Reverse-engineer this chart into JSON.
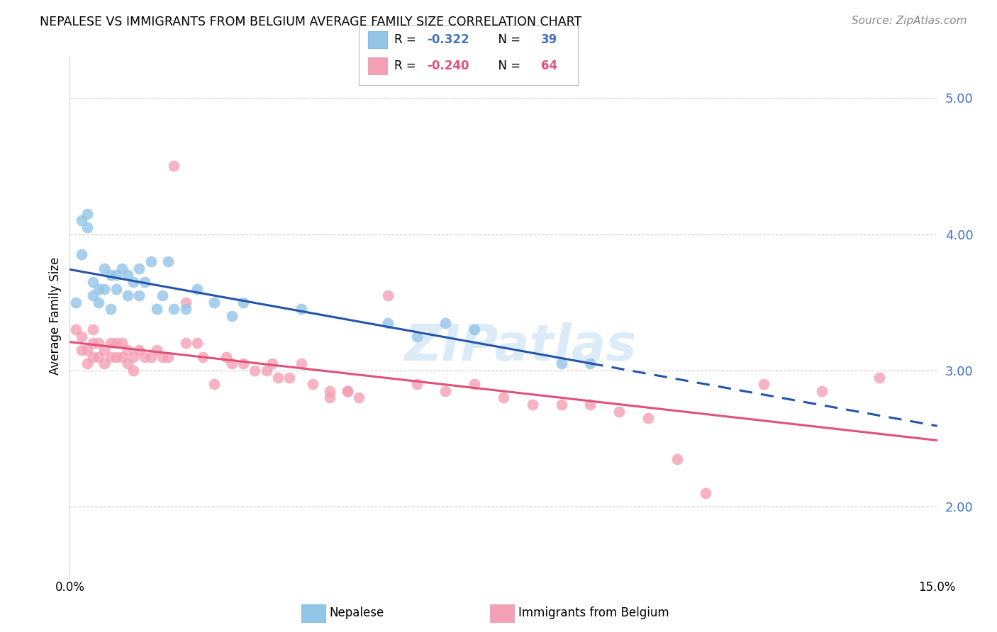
{
  "title": "NEPALESE VS IMMIGRANTS FROM BELGIUM AVERAGE FAMILY SIZE CORRELATION CHART",
  "source": "Source: ZipAtlas.com",
  "ylabel": "Average Family Size",
  "right_ylabel_color": "#4472C4",
  "xlim": [
    0.0,
    0.15
  ],
  "ylim": [
    1.5,
    5.3
  ],
  "yticks_right": [
    2.0,
    3.0,
    4.0,
    5.0
  ],
  "nepalese_color": "#92C5E8",
  "belgium_color": "#F4A0B5",
  "trend_blue_color": "#2255AA",
  "trend_pink_color": "#E0507A",
  "watermark": "ZIPatlas",
  "nepalese_x": [
    0.001,
    0.002,
    0.002,
    0.003,
    0.003,
    0.004,
    0.004,
    0.005,
    0.005,
    0.006,
    0.006,
    0.007,
    0.007,
    0.008,
    0.008,
    0.009,
    0.01,
    0.01,
    0.011,
    0.012,
    0.012,
    0.013,
    0.014,
    0.015,
    0.016,
    0.017,
    0.018,
    0.02,
    0.022,
    0.025,
    0.028,
    0.03,
    0.04,
    0.055,
    0.06,
    0.065,
    0.07,
    0.085,
    0.09
  ],
  "nepalese_y": [
    3.5,
    4.1,
    3.85,
    4.15,
    4.05,
    3.65,
    3.55,
    3.6,
    3.5,
    3.75,
    3.6,
    3.45,
    3.7,
    3.7,
    3.6,
    3.75,
    3.7,
    3.55,
    3.65,
    3.75,
    3.55,
    3.65,
    3.8,
    3.45,
    3.55,
    3.8,
    3.45,
    3.45,
    3.6,
    3.5,
    3.4,
    3.5,
    3.45,
    3.35,
    3.25,
    3.35,
    3.3,
    3.05,
    3.05
  ],
  "belgium_x": [
    0.001,
    0.002,
    0.002,
    0.003,
    0.003,
    0.004,
    0.004,
    0.004,
    0.005,
    0.005,
    0.006,
    0.006,
    0.007,
    0.007,
    0.008,
    0.008,
    0.009,
    0.009,
    0.01,
    0.01,
    0.011,
    0.011,
    0.012,
    0.013,
    0.014,
    0.015,
    0.016,
    0.017,
    0.018,
    0.02,
    0.022,
    0.023,
    0.025,
    0.027,
    0.028,
    0.03,
    0.032,
    0.034,
    0.036,
    0.038,
    0.04,
    0.042,
    0.045,
    0.048,
    0.05,
    0.055,
    0.06,
    0.065,
    0.07,
    0.075,
    0.08,
    0.085,
    0.09,
    0.095,
    0.1,
    0.105,
    0.11,
    0.12,
    0.13,
    0.14,
    0.02,
    0.035,
    0.045,
    0.048
  ],
  "belgium_y": [
    3.3,
    3.25,
    3.15,
    3.15,
    3.05,
    3.2,
    3.1,
    3.3,
    3.2,
    3.1,
    3.05,
    3.15,
    3.2,
    3.1,
    3.2,
    3.1,
    3.2,
    3.1,
    3.15,
    3.05,
    3.1,
    3.0,
    3.15,
    3.1,
    3.1,
    3.15,
    3.1,
    3.1,
    4.5,
    3.5,
    3.2,
    3.1,
    2.9,
    3.1,
    3.05,
    3.05,
    3.0,
    3.0,
    2.95,
    2.95,
    3.05,
    2.9,
    2.85,
    2.85,
    2.8,
    3.55,
    2.9,
    2.85,
    2.9,
    2.8,
    2.75,
    2.75,
    2.75,
    2.7,
    2.65,
    2.35,
    2.1,
    2.9,
    2.85,
    2.95,
    3.2,
    3.05,
    2.8,
    2.85
  ]
}
